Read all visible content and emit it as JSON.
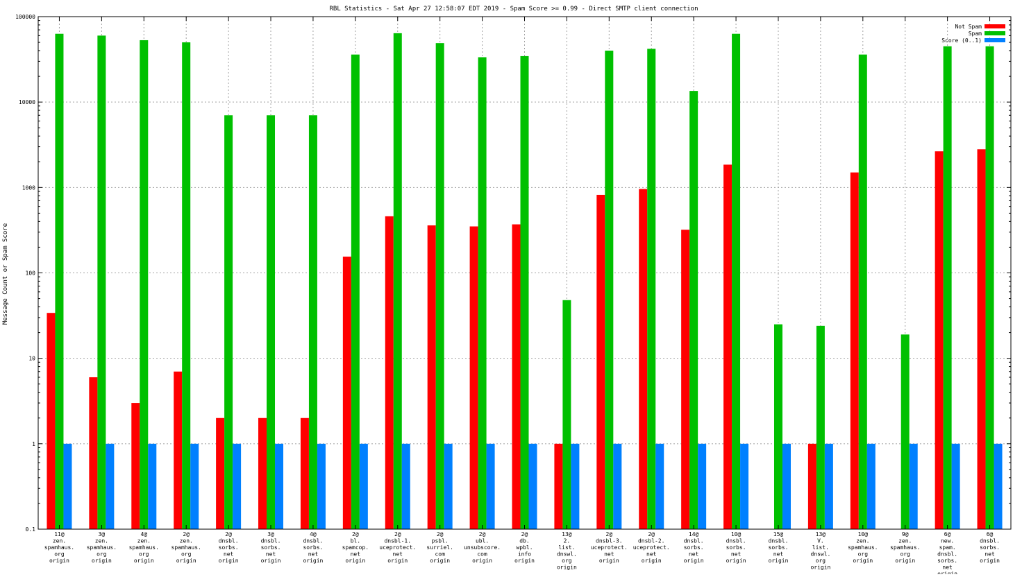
{
  "chart_data": {
    "type": "bar",
    "title": "RBL Statistics - Sat Apr 27 12:58:07 EDT 2019 - Spam Score >= 0.99 - Direct SMTP client connection",
    "xlabel": "",
    "ylabel": "Message Count or Spam Score",
    "yscale": "log",
    "ylim": [
      0.1,
      100000
    ],
    "y_tick_labels": [
      "0.1",
      "1",
      "10",
      "100",
      "1000",
      "10000",
      "100000"
    ],
    "grid": true,
    "legend_position": "top-right",
    "categories": [
      [
        "11@",
        "zen.",
        "spamhaus.",
        "org",
        "origin"
      ],
      [
        "3@",
        "zen.",
        "spamhaus.",
        "org",
        "origin"
      ],
      [
        "4@",
        "zen.",
        "spamhaus.",
        "org",
        "origin"
      ],
      [
        "2@",
        "zen.",
        "spamhaus.",
        "org",
        "origin"
      ],
      [
        "2@",
        "dnsbl.",
        "sorbs.",
        "net",
        "origin"
      ],
      [
        "3@",
        "dnsbl.",
        "sorbs.",
        "net",
        "origin"
      ],
      [
        "4@",
        "dnsbl.",
        "sorbs.",
        "net",
        "origin"
      ],
      [
        "2@",
        "bl.",
        "spamcop.",
        "net",
        "origin"
      ],
      [
        "2@",
        "dnsbl-1.",
        "uceprotect.",
        "net",
        "origin"
      ],
      [
        "2@",
        "psbl.",
        "surriel.",
        "com",
        "origin"
      ],
      [
        "2@",
        "ubl.",
        "unsubscore.",
        "com",
        "origin"
      ],
      [
        "2@",
        "db.",
        "wpbl.",
        "info",
        "origin"
      ],
      [
        "13@",
        "2.",
        "list.",
        "dnswl.",
        "org",
        "origin"
      ],
      [
        "2@",
        "dnsbl-3.",
        "uceprotect.",
        "net",
        "origin"
      ],
      [
        "2@",
        "dnsbl-2.",
        "uceprotect.",
        "net",
        "origin"
      ],
      [
        "14@",
        "dnsbl.",
        "sorbs.",
        "net",
        "origin"
      ],
      [
        "10@",
        "dnsbl.",
        "sorbs.",
        "net",
        "origin"
      ],
      [
        "15@",
        "dnsbl.",
        "sorbs.",
        "net",
        "origin"
      ],
      [
        "13@",
        "V.",
        "list.",
        "dnswl.",
        "org",
        "origin"
      ],
      [
        "10@",
        "zen.",
        "spamhaus.",
        "org",
        "origin"
      ],
      [
        "9@",
        "zen.",
        "spamhaus.",
        "org",
        "origin"
      ],
      [
        "6@",
        "new.",
        "spam.",
        "dnsbl.",
        "sorbs.",
        "net",
        "origin"
      ],
      [
        "6@",
        "dnsbl.",
        "sorbs.",
        "net",
        "origin"
      ]
    ],
    "series": [
      {
        "name": "Not Spam",
        "color": "#ff0000",
        "values": [
          34,
          6,
          3,
          7,
          2,
          2,
          2,
          155,
          460,
          360,
          350,
          370,
          1,
          820,
          960,
          320,
          1850,
          0,
          1,
          1500,
          0,
          2650,
          2800
        ]
      },
      {
        "name": "Spam",
        "color": "#00c000",
        "values": [
          63000,
          60000,
          53000,
          50000,
          7000,
          7000,
          7000,
          36000,
          64000,
          49000,
          33500,
          34500,
          48,
          40000,
          42000,
          13500,
          63000,
          25,
          24,
          36000,
          19,
          45000,
          45000
        ]
      },
      {
        "name": "Score (0..1)",
        "color": "#0080ff",
        "values": [
          1,
          1,
          1,
          1,
          1,
          1,
          1,
          1,
          1,
          1,
          1,
          1,
          1,
          1,
          1,
          1,
          1,
          1,
          1,
          1,
          1,
          1,
          1
        ]
      }
    ]
  }
}
